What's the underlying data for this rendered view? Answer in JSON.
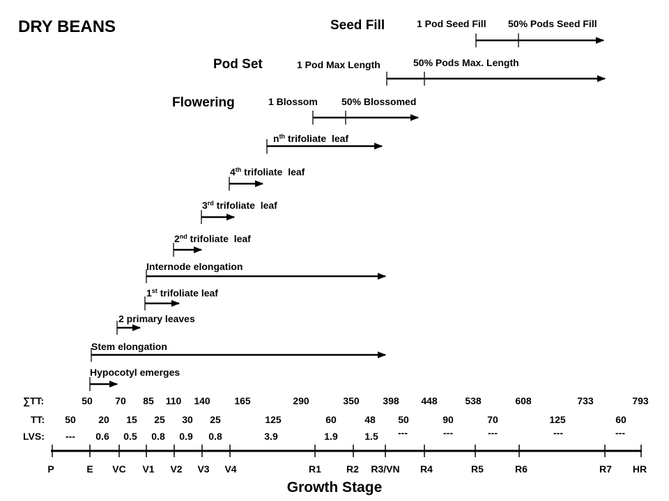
{
  "title": "DRY BEANS",
  "xlabel": "Growth Stage",
  "row_labels": {
    "tt_sum": "∑TT:",
    "tt": "TT:",
    "lvs": "LVS:"
  },
  "stages": [
    "P",
    "E",
    "VC",
    "V1",
    "V2",
    "V3",
    "V4",
    "R1",
    "R2",
    "R3/VN",
    "R4",
    "R5",
    "R6",
    "R7",
    "HR"
  ],
  "tt_sum": [
    "50",
    "70",
    "85",
    "110",
    "140",
    "165",
    "290",
    "350",
    "398",
    "448",
    "538",
    "608",
    "733",
    "793"
  ],
  "tt": [
    "50",
    "20",
    "15",
    "25",
    "30",
    "25",
    "125",
    "60",
    "48",
    "50",
    "90",
    "70",
    "125",
    "60"
  ],
  "lvs": [
    "---",
    "0.6",
    "0.5",
    "0.8",
    "0.9",
    "0.8",
    "3.9",
    "1.9",
    "1.5",
    "---",
    "---",
    "---",
    "---",
    "---"
  ],
  "phases": {
    "seed_fill": {
      "title": "Seed Fill",
      "start": "1 Pod Seed Fill",
      "half": "50% Pods Seed Fill"
    },
    "pod_set": {
      "title": "Pod Set",
      "start": "1 Pod Max Length",
      "half": "50% Pods Max. Length"
    },
    "flowering": {
      "title": "Flowering",
      "start": "1 Blossom",
      "half": "50% Blossomed"
    }
  },
  "events": {
    "nth_leaf": {
      "prefix": "n",
      "sup": "th",
      "rest": " trifoliate  leaf"
    },
    "leaf4": {
      "prefix": "4",
      "sup": "th",
      "rest": " trifoliate  leaf"
    },
    "leaf3": {
      "prefix": "3",
      "sup": "rd",
      "rest": " trifoliate  leaf"
    },
    "leaf2": {
      "prefix": "2",
      "sup": "nd",
      "rest": " trifoliate  leaf"
    },
    "internode": "Internode elongation",
    "leaf1": {
      "prefix": "1",
      "sup": "st",
      "rest": " trifoliate leaf"
    },
    "primary_leaves": "2 primary leaves",
    "stem_elongation": "Stem elongation",
    "hypocotyl": "Hypocotyl emerges"
  }
}
